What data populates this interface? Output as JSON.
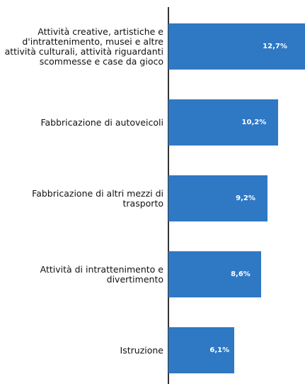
{
  "chart_data": {
    "type": "bar",
    "orientation": "horizontal",
    "categories": [
      "Attività creative, artistiche e d'intrattenimento, musei e altre attività culturali, attività riguardanti scommesse e case da gioco",
      "Fabbricazione di autoveicoli",
      "Fabbricazione di altri mezzi di trasporto",
      "Attività di intrattenimento e divertimento",
      "Istruzione"
    ],
    "values": [
      12.7,
      10.2,
      9.2,
      8.6,
      6.1
    ],
    "value_labels": [
      "12,7%",
      "10,2%",
      "9,2%",
      "8,6%",
      "6,1%"
    ],
    "color": "#2f78c4"
  }
}
